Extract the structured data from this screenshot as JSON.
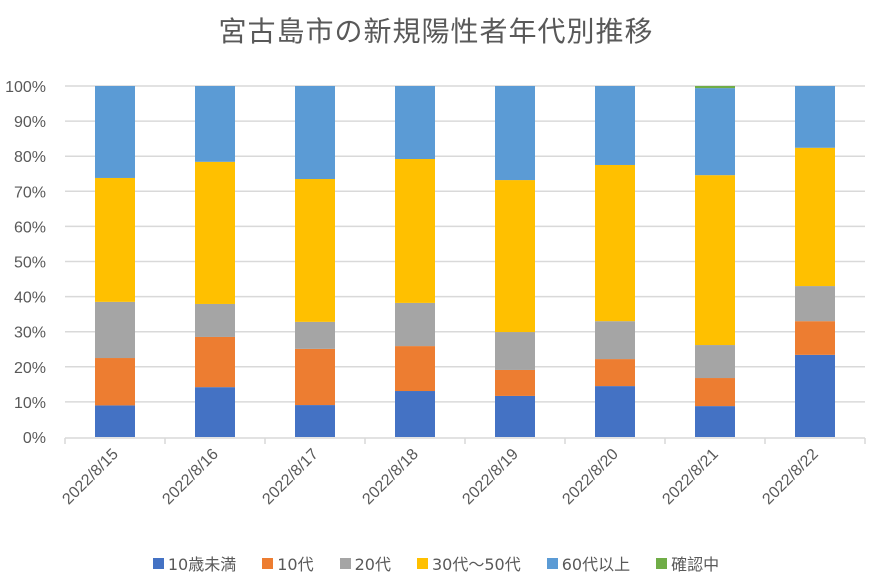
{
  "chart_data": {
    "type": "bar",
    "stacked": "percent",
    "title": "宮古島市の新規陽性者年代別推移",
    "xlabel": "",
    "ylabel": "",
    "ylim": [
      0,
      100
    ],
    "yticks": [
      "0%",
      "10%",
      "20%",
      "30%",
      "40%",
      "50%",
      "60%",
      "70%",
      "80%",
      "90%",
      "100%"
    ],
    "grid": true,
    "legend_position": "bottom",
    "categories": [
      "2022/8/15",
      "2022/8/16",
      "2022/8/17",
      "2022/8/18",
      "2022/8/19",
      "2022/8/20",
      "2022/8/21",
      "2022/8/22"
    ],
    "series": [
      {
        "name": "10歳未満",
        "color": "#4472C4",
        "values": [
          9.0,
          14.2,
          9.1,
          13.1,
          11.7,
          14.5,
          8.8,
          23.4
        ]
      },
      {
        "name": "10代",
        "color": "#ED7D31",
        "values": [
          13.5,
          14.3,
          16.0,
          12.8,
          7.4,
          7.7,
          8.0,
          9.6
        ]
      },
      {
        "name": "20代",
        "color": "#A5A5A5",
        "values": [
          16.0,
          9.4,
          7.7,
          12.3,
          10.8,
          10.8,
          9.4,
          10.0
        ]
      },
      {
        "name": "30代～50代",
        "color": "#FFC000",
        "values": [
          35.3,
          40.5,
          40.7,
          41.0,
          43.3,
          44.5,
          48.4,
          39.4
        ]
      },
      {
        "name": "60代以上",
        "color": "#5B9BD5",
        "values": [
          26.2,
          21.6,
          26.5,
          20.8,
          26.8,
          22.5,
          24.8,
          17.6
        ]
      },
      {
        "name": "確認中",
        "color": "#70AD47",
        "values": [
          0,
          0,
          0,
          0,
          0,
          0,
          0.6,
          0
        ]
      }
    ]
  }
}
